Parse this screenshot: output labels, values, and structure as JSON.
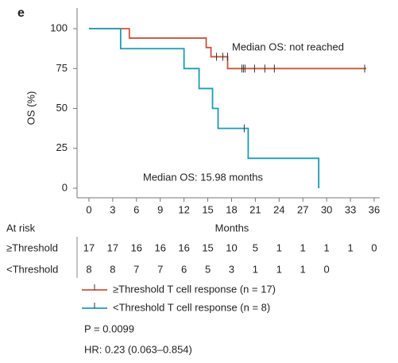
{
  "panel_label": "e",
  "chart_data": {
    "type": "kaplan-meier",
    "ylabel": "OS (%)",
    "xlabel": "Months",
    "xlim": [
      -1.5,
      36.7
    ],
    "ylim": [
      -6,
      113
    ],
    "xticks": [
      0,
      3,
      6,
      9,
      12,
      15,
      18,
      21,
      24,
      27,
      30,
      33,
      36
    ],
    "yticks": [
      0,
      25,
      50,
      75,
      100
    ],
    "annotations": [
      "Median OS: not reached",
      "Median OS: 15.98 months"
    ],
    "series": [
      {
        "name": "≥Threshold T cell response (n = 17)",
        "color": "#c8553d",
        "x": [
          0,
          5.1,
          14.8,
          15.4,
          17.5,
          35
        ],
        "values": [
          100,
          94.1,
          88.2,
          82.4,
          75,
          75
        ],
        "censor_x": [
          16.1,
          16.9,
          17.5,
          19.3,
          19.5,
          19.7,
          20.9,
          22.2,
          23.4,
          34.8
        ],
        "censor_values": [
          82.4,
          82.4,
          82.4,
          75,
          75,
          75,
          75,
          75,
          75,
          75
        ]
      },
      {
        "name": "<Threshold T cell response (n = 8)",
        "color": "#1b9bb5",
        "x": [
          0,
          4,
          12,
          13.9,
          15.6,
          16.3,
          20.1,
          29
        ],
        "values": [
          100,
          87.5,
          75,
          62.5,
          50,
          37.5,
          18.75,
          0
        ],
        "censor_x": [
          19.6
        ],
        "censor_values": [
          37.5
        ]
      }
    ],
    "risk_table": {
      "title": "At risk",
      "rows": [
        {
          "label": "≥Threshold",
          "values": [
            17,
            17,
            16,
            16,
            16,
            15,
            10,
            5,
            1,
            1,
            1,
            1,
            0
          ]
        },
        {
          "label": "<Threshold",
          "values": [
            8,
            8,
            7,
            7,
            6,
            5,
            3,
            1,
            1,
            1,
            0
          ]
        }
      ]
    },
    "notes": [
      "P = 0.0099",
      "HR: 0.23 (0.063–0.854)"
    ]
  }
}
